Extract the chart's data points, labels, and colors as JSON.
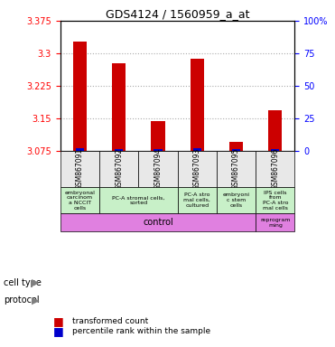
{
  "title": "GDS4124 / 1560959_a_at",
  "samples": [
    "GSM867091",
    "GSM867092",
    "GSM867094",
    "GSM867093",
    "GSM867095",
    "GSM867096"
  ],
  "red_values": [
    3.327,
    3.277,
    3.143,
    3.287,
    3.095,
    3.168
  ],
  "blue_values": [
    3.082,
    3.079,
    3.079,
    3.081,
    3.079,
    3.08
  ],
  "ymin": 3.075,
  "ymax": 3.375,
  "yticks_left": [
    3.075,
    3.15,
    3.225,
    3.3,
    3.375
  ],
  "yticks_right": [
    0,
    25,
    50,
    75,
    100
  ],
  "yticks_right_labels": [
    "0",
    "25",
    "50",
    "75",
    "100%"
  ],
  "cell_types": [
    [
      "embryonal\ncarcinom\na NCCIT\ncells",
      1
    ],
    [
      "PC-A stromal cells,\nsorted",
      2
    ],
    [
      "PC-A stro\nmal cells,\ncultured",
      1
    ],
    [
      "embryoni\nc stem\ncells",
      1
    ],
    [
      "IPS cells\nfrom\nPC-A stro\nmal cells",
      1
    ]
  ],
  "cell_type_spans": [
    1,
    2,
    1,
    1,
    1
  ],
  "cell_type_colors": [
    "#d0f0d0",
    "#d0f0d0",
    "#d0f0d0",
    "#d0f0d0",
    "#d0f0d0"
  ],
  "protocol_control_span": 5,
  "protocol_reprogramming_span": 1,
  "protocol_color": "#e080e0",
  "bar_color_red": "#cc0000",
  "bar_color_blue": "#0000cc",
  "bg_color": "#e8e8e8",
  "plot_bg": "#ffffff",
  "grid_color": "#aaaaaa",
  "legend_red": "transformed count",
  "legend_blue": "percentile rank within the sample"
}
